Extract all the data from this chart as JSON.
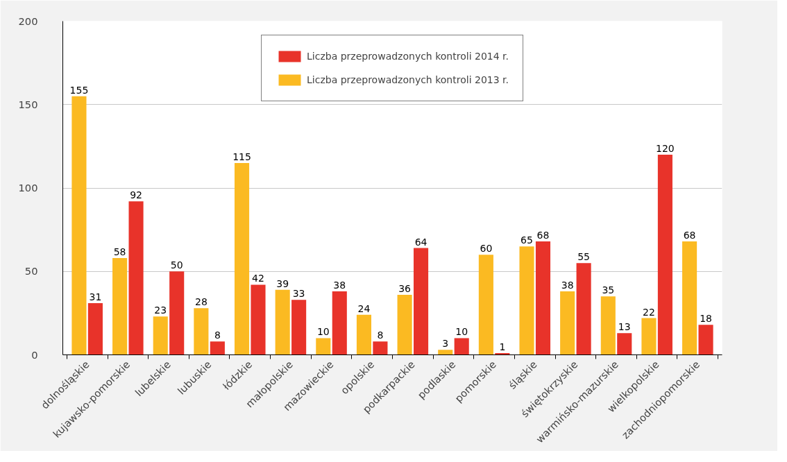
{
  "chart_data": {
    "type": "bar",
    "categories": [
      "dolnośląskie",
      "kujawsko-pomorskie",
      "lubelskie",
      "lubuskie",
      "łódzkie",
      "małopolskie",
      "mazowieckie",
      "opolskie",
      "podkarpackie",
      "podlaskie",
      "pomorskie",
      "śląskie",
      "świętokrzyskie",
      "warmińsko-mazurskie",
      "wielkopolskie",
      "zachodniopomorskie"
    ],
    "series": [
      {
        "name": "Liczba przeprowadzonych kontroli 2013 r.",
        "color": "#fbba22",
        "values": [
          155,
          58,
          23,
          28,
          115,
          39,
          10,
          24,
          36,
          3,
          60,
          65,
          38,
          35,
          22,
          68
        ]
      },
      {
        "name": "Liczba przeprowadzonych kontroli 2014 r.",
        "color": "#e8332a",
        "values": [
          31,
          92,
          50,
          8,
          42,
          33,
          38,
          8,
          64,
          10,
          1,
          68,
          55,
          13,
          120,
          18
        ]
      }
    ],
    "ylim": [
      0,
      200
    ],
    "yticks": [
      0,
      50,
      100,
      150,
      200
    ],
    "grid": "y",
    "legend": "top",
    "data_labels": true
  }
}
